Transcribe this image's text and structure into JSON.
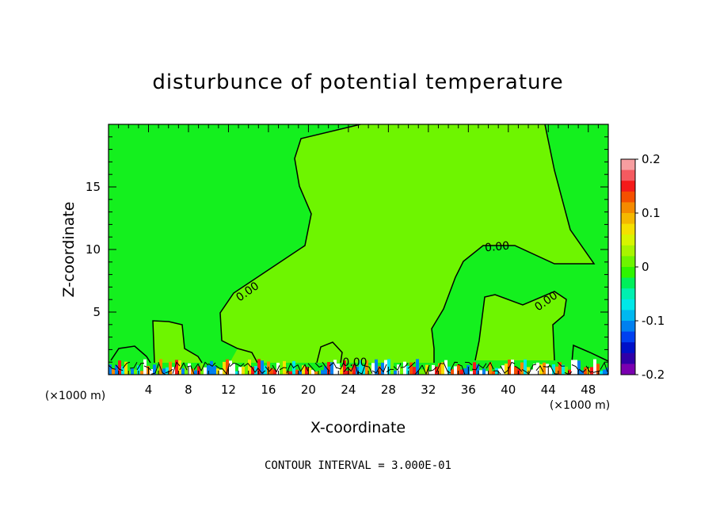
{
  "chart_data": {
    "type": "heatmap",
    "title": "disturbunce of potential temperature",
    "xlabel": "X-coordinate",
    "ylabel": "Z-coordinate",
    "x_unit": "(×1000 m)",
    "y_unit": "(×1000 m)",
    "xlim": [
      0,
      50
    ],
    "ylim": [
      0,
      20
    ],
    "x_ticks": [
      "4",
      "8",
      "12",
      "16",
      "20",
      "24",
      "28",
      "32",
      "36",
      "40",
      "44",
      "48"
    ],
    "x_tick_values": [
      4,
      8,
      12,
      16,
      20,
      24,
      28,
      32,
      36,
      40,
      44,
      48
    ],
    "y_ticks": [
      "5",
      "10",
      "15"
    ],
    "y_tick_values": [
      5,
      10,
      15
    ],
    "contour_label": "0.00",
    "contour_interval_text": "CONTOUR INTERVAL = 3.000E-01",
    "background_value": 0.0,
    "colorbar": {
      "min": -0.2,
      "max": 0.2,
      "tick_labels": [
        "0.2",
        "0.1",
        "0",
        "-0.1",
        "-0.2"
      ],
      "tick_values": [
        0.2,
        0.1,
        0,
        -0.1,
        -0.2
      ],
      "colors": [
        "#f79ea0",
        "#f55a60",
        "#f51a1a",
        "#f55000",
        "#f58a00",
        "#f5b800",
        "#f5e000",
        "#d8f500",
        "#a8f500",
        "#6ef500",
        "#2ef500",
        "#00f05a",
        "#00f0b0",
        "#00e8e8",
        "#00b8f0",
        "#0080f0",
        "#0040f0",
        "#0010c8",
        "#3000a8",
        "#7a00b0"
      ]
    },
    "near_surface_band_z": [
      0,
      1
    ]
  }
}
